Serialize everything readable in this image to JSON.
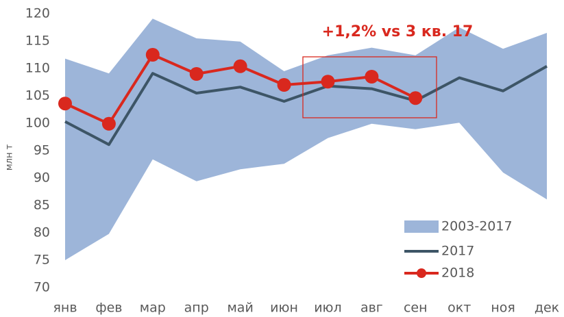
{
  "chart_data": {
    "type": "line",
    "annotation": "+1,2% vs 3 кв. 17",
    "y_label": "млн т",
    "categories": [
      "янв",
      "фев",
      "мар",
      "апр",
      "май",
      "июн",
      "июл",
      "авг",
      "сен",
      "окт",
      "ноя",
      "дек"
    ],
    "series": [
      {
        "name": "2003-2017",
        "color": "#9db5d9",
        "kind": "band",
        "values": [
          111.8,
          109.1,
          119.1,
          115.5,
          114.9,
          109.5,
          112.4,
          113.8,
          112.4,
          117.5,
          113.6,
          116.5
        ],
        "lower": [
          75,
          79.8,
          93.4,
          89.4,
          91.6,
          92.6,
          97.3,
          99.9,
          98.9,
          100.1,
          91,
          86.1
        ]
      },
      {
        "name": "2017",
        "color": "#3d5566",
        "values": [
          100.3,
          96.1,
          109.1,
          105.5,
          106.6,
          104,
          106.8,
          106.3,
          104.1,
          108.3,
          105.9,
          110.4
        ]
      },
      {
        "name": "2018",
        "color": "#d9281e",
        "markers": true,
        "values": [
          103.6,
          99.9,
          112.5,
          109,
          110.4,
          107,
          107.6,
          108.5,
          104.6,
          null,
          null,
          null
        ]
      }
    ],
    "ylim": [
      70,
      120
    ],
    "yticks": [
      70,
      75,
      80,
      85,
      90,
      95,
      100,
      105,
      110,
      115,
      120
    ],
    "grid": false,
    "legend": "bottom-right"
  }
}
